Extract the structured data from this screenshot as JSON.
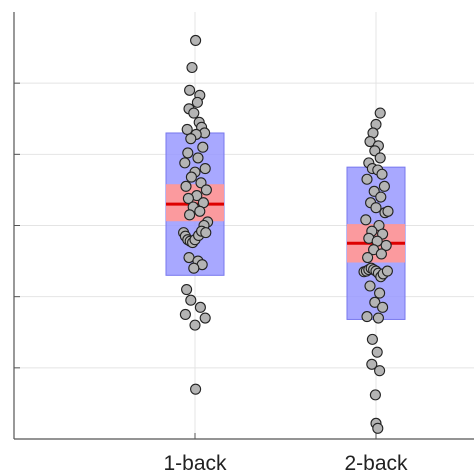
{
  "chart_data": {
    "type": "scatter",
    "title": "",
    "xlabel": "",
    "ylabel": "",
    "categories": [
      "1-back",
      "2-back"
    ],
    "grid": true,
    "y_tick_labels_visible": false,
    "ylim": [
      0,
      6
    ],
    "yticks": [
      1,
      2,
      3,
      4,
      5
    ],
    "colors": {
      "box_fill": "#9999ff",
      "box_edge": "#7777ee",
      "ci_fill": "#ff9999",
      "mean_line": "#dd0000",
      "point_fill": "#b4b4b4",
      "point_edge": "#222222",
      "grid": "#e4e4e4",
      "axis": "#555555"
    },
    "groups": [
      {
        "category": "1-back",
        "mean": 3.3,
        "ci_low": 3.06,
        "ci_high": 3.58,
        "sd_low": 2.3,
        "sd_high": 4.3,
        "points": [
          {
            "jitter": 0.01,
            "y": 5.6
          },
          {
            "jitter": -0.05,
            "y": 5.22
          },
          {
            "jitter": -0.09,
            "y": 4.9
          },
          {
            "jitter": 0.08,
            "y": 4.83
          },
          {
            "jitter": 0.04,
            "y": 4.73
          },
          {
            "jitter": -0.1,
            "y": 4.64
          },
          {
            "jitter": -0.02,
            "y": 4.58
          },
          {
            "jitter": 0.07,
            "y": 4.45
          },
          {
            "jitter": 0.11,
            "y": 4.38
          },
          {
            "jitter": -0.13,
            "y": 4.35
          },
          {
            "jitter": 0.16,
            "y": 4.3
          },
          {
            "jitter": 0.02,
            "y": 4.28
          },
          {
            "jitter": -0.07,
            "y": 4.22
          },
          {
            "jitter": 0.13,
            "y": 4.1
          },
          {
            "jitter": -0.12,
            "y": 4.02
          },
          {
            "jitter": 0.05,
            "y": 3.95
          },
          {
            "jitter": -0.17,
            "y": 3.88
          },
          {
            "jitter": 0.17,
            "y": 3.8
          },
          {
            "jitter": 0.0,
            "y": 3.75
          },
          {
            "jitter": -0.06,
            "y": 3.68
          },
          {
            "jitter": 0.1,
            "y": 3.6
          },
          {
            "jitter": -0.15,
            "y": 3.55
          },
          {
            "jitter": 0.19,
            "y": 3.5
          },
          {
            "jitter": 0.03,
            "y": 3.42
          },
          {
            "jitter": -0.11,
            "y": 3.38
          },
          {
            "jitter": 0.14,
            "y": 3.32
          },
          {
            "jitter": -0.03,
            "y": 3.26
          },
          {
            "jitter": 0.08,
            "y": 3.2
          },
          {
            "jitter": -0.09,
            "y": 3.15
          },
          {
            "jitter": 0.21,
            "y": 3.05
          },
          {
            "jitter": 0.15,
            "y": 3.0
          },
          {
            "jitter": -0.19,
            "y": 2.9
          },
          {
            "jitter": -0.16,
            "y": 2.85
          },
          {
            "jitter": -0.12,
            "y": 2.8
          },
          {
            "jitter": -0.08,
            "y": 2.78
          },
          {
            "jitter": -0.04,
            "y": 2.76
          },
          {
            "jitter": 0.0,
            "y": 2.8
          },
          {
            "jitter": 0.06,
            "y": 2.86
          },
          {
            "jitter": 0.11,
            "y": 2.92
          },
          {
            "jitter": 0.18,
            "y": 2.9
          },
          {
            "jitter": -0.1,
            "y": 2.55
          },
          {
            "jitter": 0.05,
            "y": 2.5
          },
          {
            "jitter": 0.12,
            "y": 2.45
          },
          {
            "jitter": -0.02,
            "y": 2.4
          },
          {
            "jitter": -0.14,
            "y": 2.1
          },
          {
            "jitter": -0.07,
            "y": 1.95
          },
          {
            "jitter": 0.09,
            "y": 1.85
          },
          {
            "jitter": -0.16,
            "y": 1.75
          },
          {
            "jitter": 0.17,
            "y": 1.7
          },
          {
            "jitter": 0.0,
            "y": 1.6
          },
          {
            "jitter": 0.01,
            "y": 0.7
          }
        ]
      },
      {
        "category": "2-back",
        "mean": 2.75,
        "ci_low": 2.48,
        "ci_high": 3.02,
        "sd_low": 1.68,
        "sd_high": 3.82,
        "points": [
          {
            "jitter": 0.07,
            "y": 4.58
          },
          {
            "jitter": 0.0,
            "y": 4.42
          },
          {
            "jitter": -0.05,
            "y": 4.3
          },
          {
            "jitter": -0.1,
            "y": 4.18
          },
          {
            "jitter": 0.04,
            "y": 4.12
          },
          {
            "jitter": -0.02,
            "y": 4.05
          },
          {
            "jitter": 0.07,
            "y": 3.95
          },
          {
            "jitter": -0.12,
            "y": 3.88
          },
          {
            "jitter": -0.06,
            "y": 3.8
          },
          {
            "jitter": 0.03,
            "y": 3.78
          },
          {
            "jitter": 0.1,
            "y": 3.72
          },
          {
            "jitter": -0.15,
            "y": 3.65
          },
          {
            "jitter": 0.14,
            "y": 3.55
          },
          {
            "jitter": -0.03,
            "y": 3.48
          },
          {
            "jitter": 0.08,
            "y": 3.4
          },
          {
            "jitter": -0.09,
            "y": 3.32
          },
          {
            "jitter": 0.0,
            "y": 3.25
          },
          {
            "jitter": 0.15,
            "y": 3.18
          },
          {
            "jitter": 0.2,
            "y": 3.2
          },
          {
            "jitter": -0.17,
            "y": 3.08
          },
          {
            "jitter": 0.05,
            "y": 3.0
          },
          {
            "jitter": -0.07,
            "y": 2.92
          },
          {
            "jitter": 0.11,
            "y": 2.88
          },
          {
            "jitter": -0.12,
            "y": 2.82
          },
          {
            "jitter": 0.02,
            "y": 2.78
          },
          {
            "jitter": 0.17,
            "y": 2.72
          },
          {
            "jitter": -0.04,
            "y": 2.66
          },
          {
            "jitter": 0.09,
            "y": 2.6
          },
          {
            "jitter": -0.14,
            "y": 2.55
          },
          {
            "jitter": -0.2,
            "y": 2.35
          },
          {
            "jitter": -0.16,
            "y": 2.36
          },
          {
            "jitter": -0.12,
            "y": 2.38
          },
          {
            "jitter": -0.08,
            "y": 2.4
          },
          {
            "jitter": -0.04,
            "y": 2.38
          },
          {
            "jitter": 0.0,
            "y": 2.36
          },
          {
            "jitter": 0.04,
            "y": 2.33
          },
          {
            "jitter": 0.08,
            "y": 2.28
          },
          {
            "jitter": 0.12,
            "y": 2.32
          },
          {
            "jitter": 0.19,
            "y": 2.36
          },
          {
            "jitter": -0.1,
            "y": 2.15
          },
          {
            "jitter": 0.06,
            "y": 2.05
          },
          {
            "jitter": -0.02,
            "y": 1.92
          },
          {
            "jitter": 0.11,
            "y": 1.85
          },
          {
            "jitter": -0.15,
            "y": 1.72
          },
          {
            "jitter": 0.04,
            "y": 1.7
          },
          {
            "jitter": -0.06,
            "y": 1.4
          },
          {
            "jitter": 0.02,
            "y": 1.22
          },
          {
            "jitter": -0.07,
            "y": 1.05
          },
          {
            "jitter": 0.06,
            "y": 0.96
          },
          {
            "jitter": -0.01,
            "y": 0.62
          },
          {
            "jitter": 0.0,
            "y": 0.22
          },
          {
            "jitter": 0.03,
            "y": 0.15
          }
        ]
      }
    ]
  }
}
